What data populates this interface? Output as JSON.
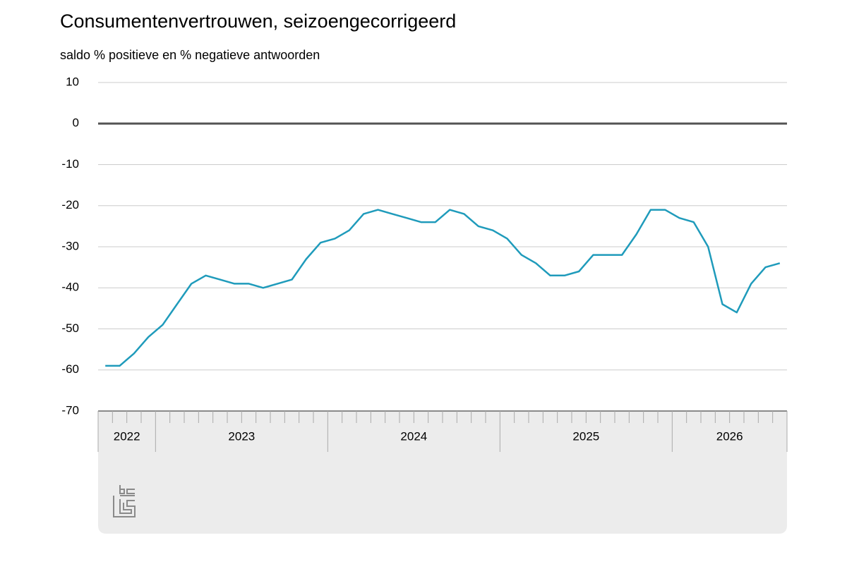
{
  "chart_data": {
    "type": "line",
    "title": "Consumentenvertrouwen, seizoengecorrigeerd",
    "subtitle": "saldo % positieve en % negatieve antwoorden",
    "categories": [
      "2022",
      "2022",
      "2022",
      "2022",
      "2023",
      "2023",
      "2023",
      "2023",
      "2023",
      "2023",
      "2023",
      "2023",
      "2023",
      "2023",
      "2023",
      "2023",
      "2024",
      "2024",
      "2024",
      "2024",
      "2024",
      "2024",
      "2024",
      "2024",
      "2024",
      "2024",
      "2024",
      "2024",
      "2025",
      "2025",
      "2025",
      "2025",
      "2025",
      "2025",
      "2025",
      "2025",
      "2025",
      "2025",
      "2025",
      "2025",
      "2026",
      "2026",
      "2026",
      "2026",
      "2026",
      "2026",
      "2026",
      "2026"
    ],
    "values": [
      -59,
      -59,
      -56,
      -52,
      -49,
      -44,
      -39,
      -37,
      -38,
      -39,
      -39,
      -40,
      -39,
      -38,
      -33,
      -29,
      -28,
      -26,
      -22,
      -21,
      -22,
      -23,
      -24,
      -24,
      -21,
      -22,
      -25,
      -26,
      -28,
      -32,
      -34,
      -37,
      -37,
      -36,
      -32,
      -32,
      -32,
      -27,
      -21,
      -21,
      -23,
      -24,
      -30,
      -44,
      -46,
      -39,
      -35,
      -34
    ],
    "color": "#1f9bbb",
    "ylim": [
      -70,
      10
    ],
    "yticks": [
      10,
      0,
      -10,
      -20,
      -30,
      -40,
      -50,
      -60,
      -70
    ],
    "grid": true
  }
}
